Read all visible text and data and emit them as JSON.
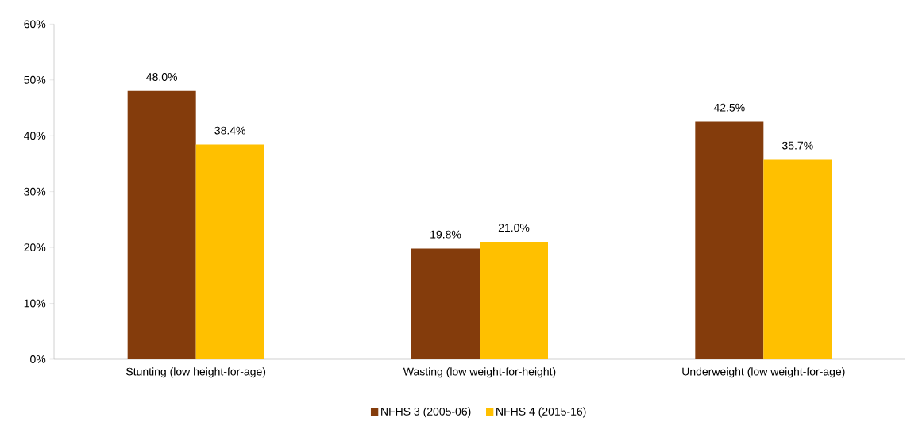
{
  "chart_data": {
    "type": "bar",
    "categories": [
      "Stunting (low height-for-age)",
      "Wasting (low weight-for-height)",
      "Underweight (low weight-for-age)"
    ],
    "series": [
      {
        "name": "NFHS 3 (2005-06)",
        "color": "#843c0c",
        "values": [
          48.0,
          19.8,
          42.5
        ],
        "value_labels": [
          "48.0%",
          "19.8%",
          "42.5%"
        ]
      },
      {
        "name": "NFHS 4 (2015-16)",
        "color": "#ffc000",
        "values": [
          38.4,
          21.0,
          35.7
        ],
        "value_labels": [
          "38.4%",
          "21.0%",
          "35.7%"
        ]
      }
    ],
    "ylim": [
      0,
      60
    ],
    "yticks": [
      {
        "value": 0,
        "label": "0%"
      },
      {
        "value": 10,
        "label": "10%"
      },
      {
        "value": 20,
        "label": "20%"
      },
      {
        "value": 30,
        "label": "30%"
      },
      {
        "value": 40,
        "label": "40%"
      },
      {
        "value": 50,
        "label": "50%"
      },
      {
        "value": 60,
        "label": "60%"
      }
    ],
    "legend": "bottom"
  }
}
